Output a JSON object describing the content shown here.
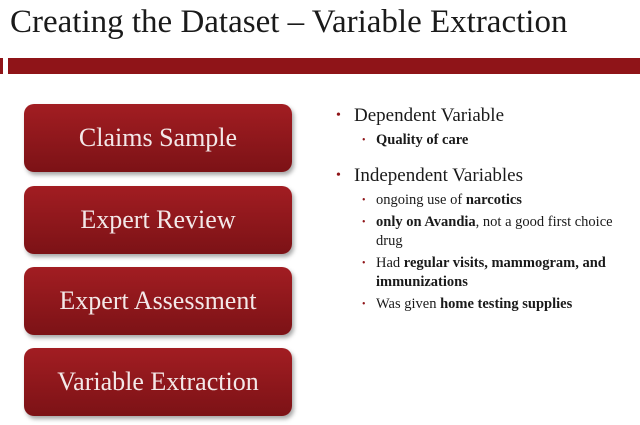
{
  "slide": {
    "title": "Creating the Dataset – Variable Extraction"
  },
  "steps": [
    {
      "label": "Claims Sample"
    },
    {
      "label": "Expert Review"
    },
    {
      "label": "Expert Assessment"
    },
    {
      "label": "Variable Extraction"
    }
  ],
  "bullets": {
    "dependent": {
      "heading": "Dependent Variable",
      "items": [
        {
          "bold": "Quality of care"
        }
      ]
    },
    "independent": {
      "heading": "Independent Variables",
      "items": [
        {
          "pre": "ongoing use of ",
          "bold": "narcotics"
        },
        {
          "bold": "only on Avandia",
          "post": ", not a good first choice drug"
        },
        {
          "pre": "Had ",
          "bold": "regular visits, mammogram, and immunizations"
        },
        {
          "pre": "Was given ",
          "bold": "home testing supplies"
        }
      ]
    }
  },
  "colors": {
    "accent": "#8f1418"
  }
}
